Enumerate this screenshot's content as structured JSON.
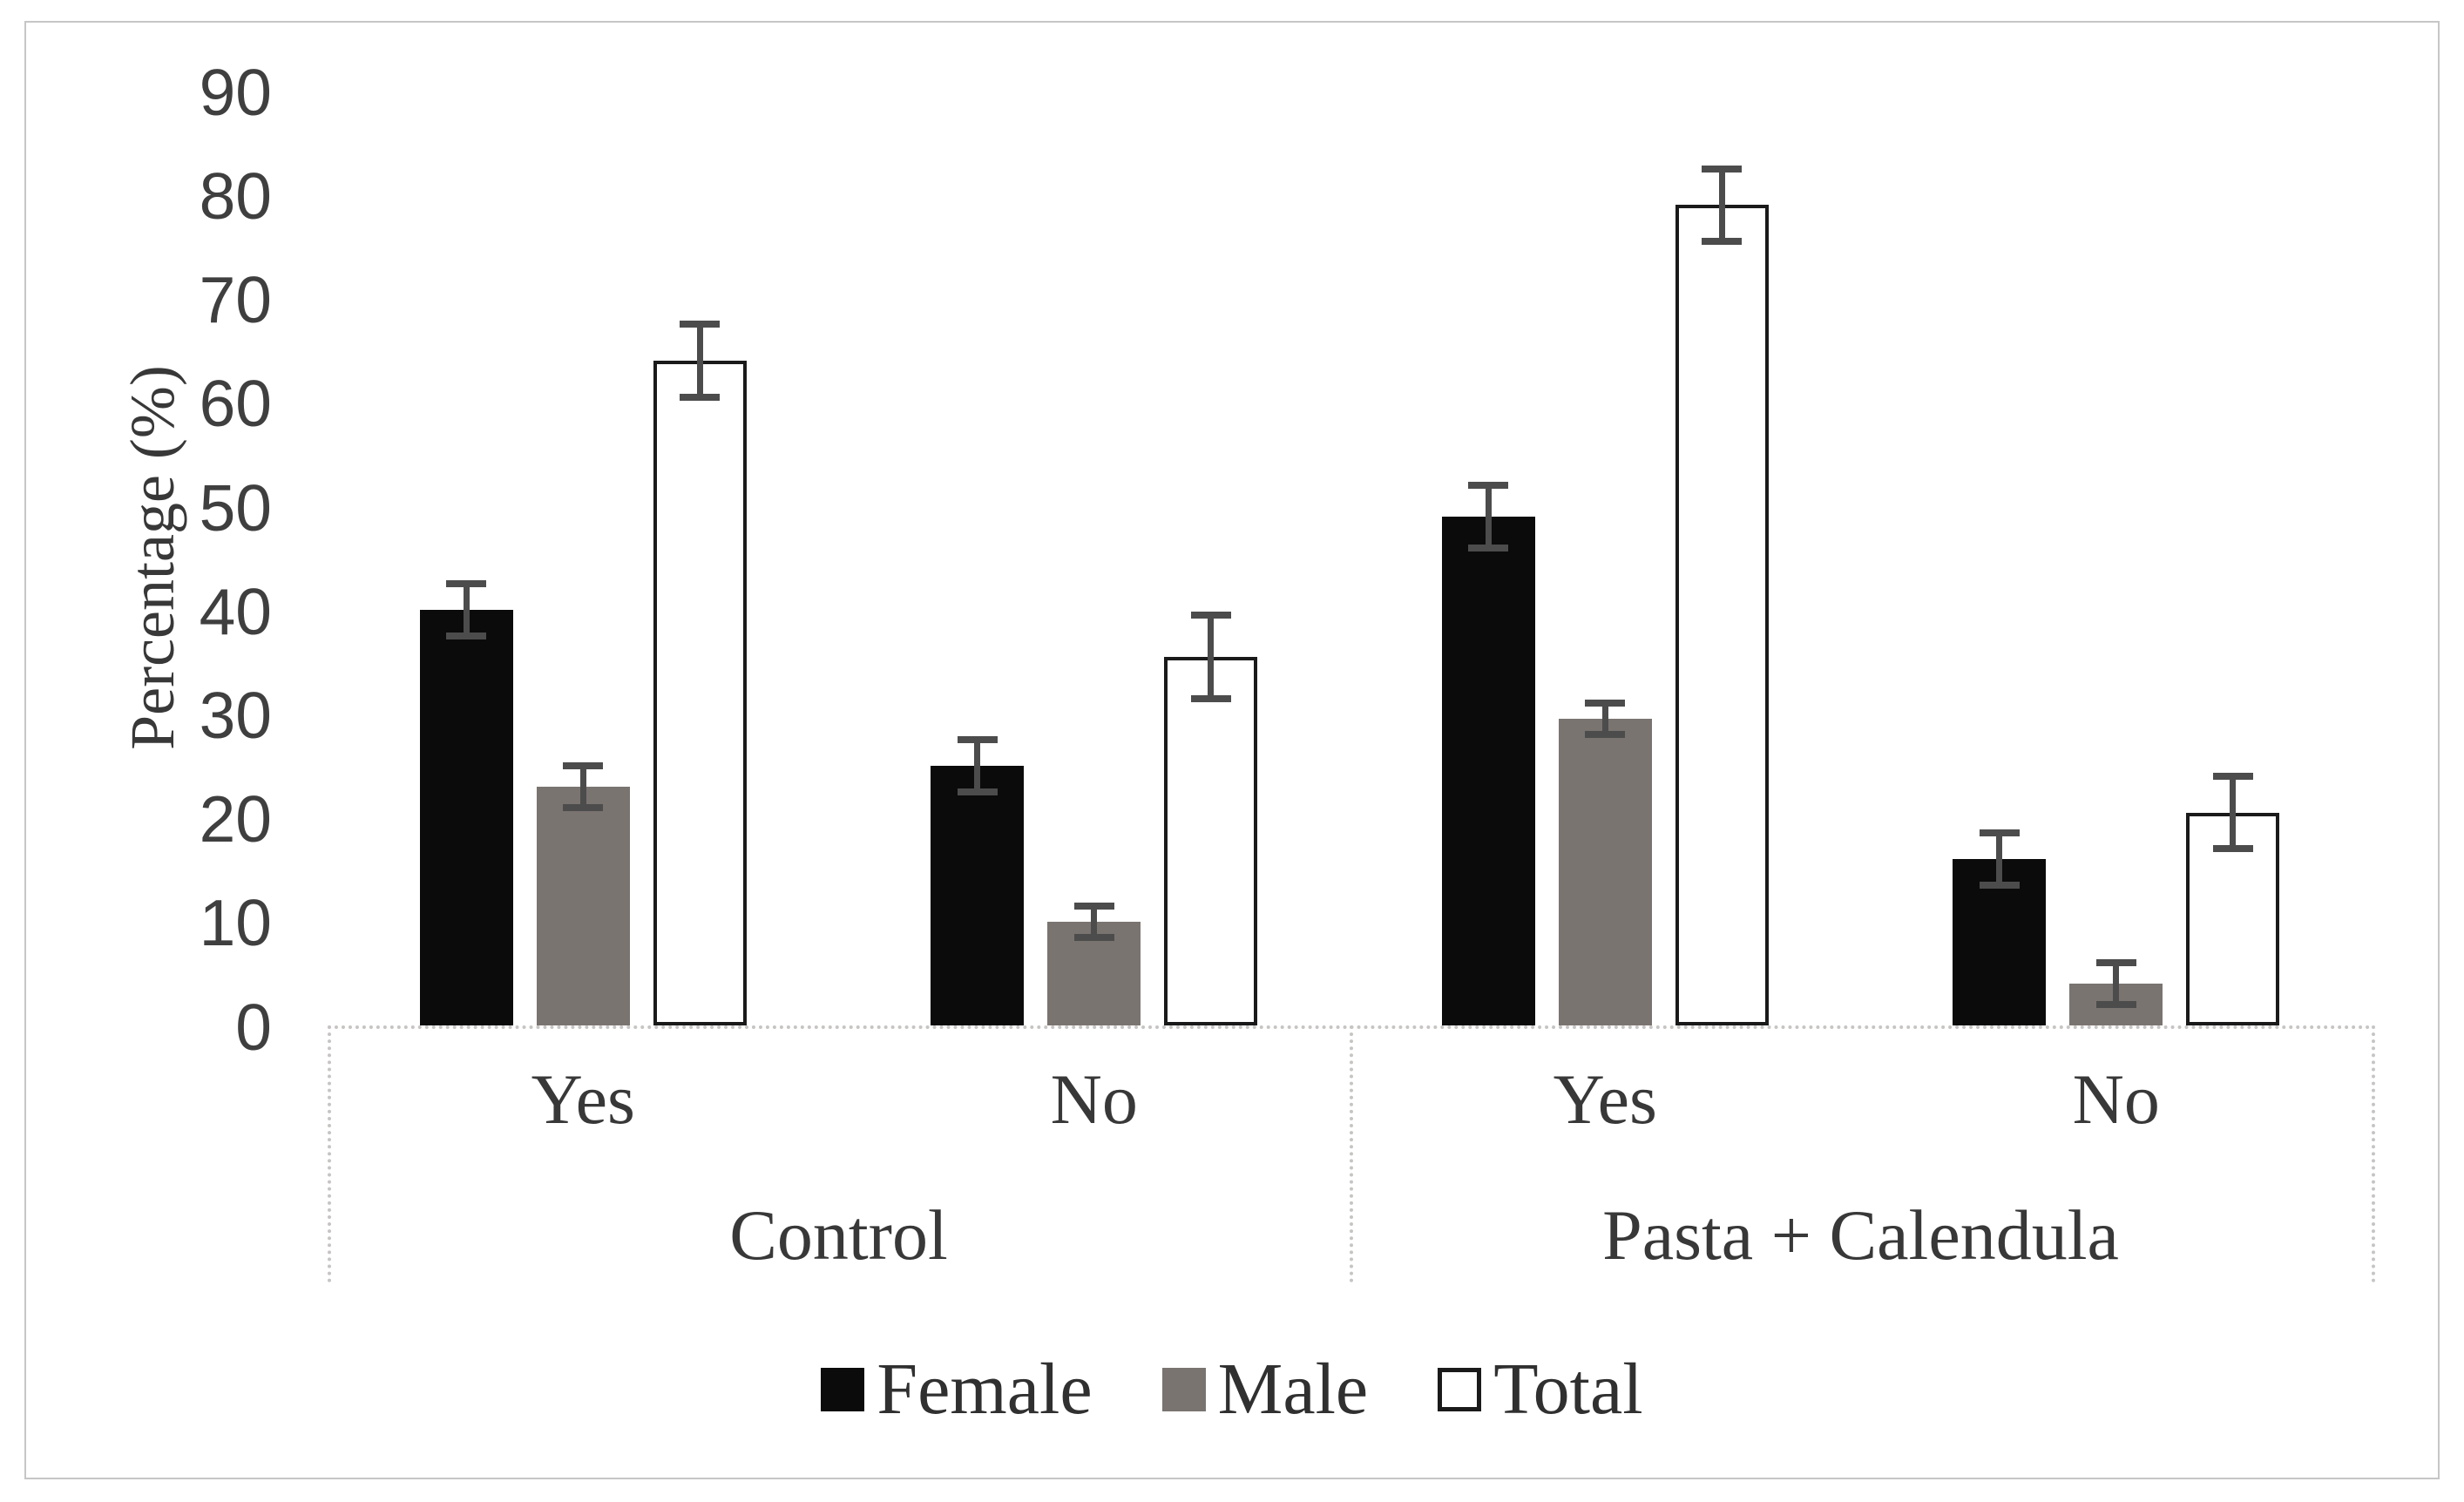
{
  "chart_data": {
    "type": "bar",
    "title": "",
    "ylabel": "Percentage (%)",
    "xlabel": "",
    "ylim": [
      0,
      90
    ],
    "yticks": [
      0,
      10,
      20,
      30,
      40,
      50,
      60,
      70,
      80,
      90
    ],
    "grid": false,
    "legend_position": "bottom",
    "series": [
      {
        "name": "Female",
        "fill": "#0b0b0b",
        "border": "#0b0b0b"
      },
      {
        "name": "Male",
        "fill": "#7a7471",
        "border": "#7a7471"
      },
      {
        "name": "Total",
        "fill": "#ffffff",
        "border": "#1a1a1a"
      }
    ],
    "error_bar_color": "#4c4c4c",
    "groups": [
      {
        "label": "Control",
        "clusters": [
          {
            "label": "Yes",
            "values": [
              40,
              23,
              64
            ],
            "errors": [
              2.5,
              2,
              3.5
            ]
          },
          {
            "label": "No",
            "values": [
              25,
              10,
              35.5
            ],
            "errors": [
              2.5,
              1.5,
              4
            ]
          }
        ]
      },
      {
        "label": "Pasta + Calendula",
        "clusters": [
          {
            "label": "Yes",
            "values": [
              49,
              29.5,
              79
            ],
            "errors": [
              3,
              1.5,
              3.5
            ]
          },
          {
            "label": "No",
            "values": [
              16,
              4,
              20.5
            ],
            "errors": [
              2.5,
              2,
              3.5
            ]
          }
        ]
      }
    ]
  }
}
